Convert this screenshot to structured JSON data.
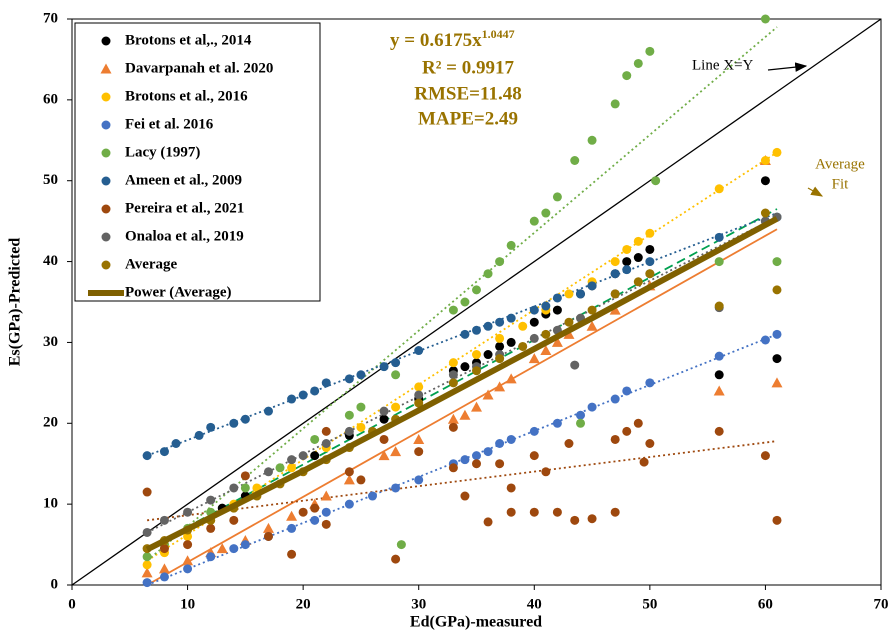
{
  "chart_data": {
    "type": "scatter",
    "x_label": "Ed(GPa)-measured",
    "y_label": "Es(GPa)-Predicted",
    "xlim": [
      0,
      70
    ],
    "ylim": [
      0,
      70
    ],
    "xticks": [
      0,
      10,
      20,
      30,
      40,
      50,
      60,
      70
    ],
    "yticks": [
      0,
      10,
      20,
      30,
      40,
      50,
      60,
      70
    ],
    "annotations": {
      "equation": {
        "base": "y = 0.6175x",
        "exponent": "1.0447"
      },
      "r2": "R² = 0.9917",
      "rmse": "RMSE=11.48",
      "mape": "MAPE=2.49",
      "identity": "Line X=Y",
      "fit_1": "Average",
      "fit_2": "Fit"
    },
    "series": [
      {
        "name": "Brotons et al,., 2014",
        "color": "#000000",
        "marker": "circle",
        "x": [
          13,
          15,
          21,
          24,
          27,
          30,
          33,
          34,
          35,
          36,
          37,
          38,
          40,
          41,
          42,
          44,
          45,
          47,
          48,
          49,
          50,
          56,
          60,
          61
        ],
        "values": [
          9.5,
          11,
          16,
          18.5,
          20.5,
          23,
          26.5,
          27,
          27.5,
          28.5,
          29.5,
          30,
          32.5,
          33.5,
          34,
          36,
          37,
          38.5,
          40,
          40.5,
          41.5,
          26,
          50,
          28
        ],
        "trend": {
          "x": [
            6.5,
            61
          ],
          "values": [
            4.5,
            46.5
          ],
          "color": "#00a050",
          "style": "dashed"
        }
      },
      {
        "name": "Davarpanah  et al. 2020",
        "color": "#ed7d31",
        "marker": "triangle",
        "x": [
          6.5,
          8,
          10,
          12,
          13,
          15,
          17,
          19,
          21,
          22,
          24,
          27,
          28,
          30,
          33,
          34,
          35,
          36,
          37,
          38,
          40,
          41,
          42,
          43,
          45,
          47,
          50,
          56,
          60,
          61
        ],
        "values": [
          1.5,
          2,
          3,
          4,
          4.5,
          5.5,
          7,
          8.5,
          10,
          11,
          13,
          16,
          16.5,
          18,
          20.5,
          21,
          22,
          23.5,
          24.5,
          25.5,
          28,
          29,
          30,
          31,
          32,
          34,
          37,
          24,
          52.5,
          25
        ],
        "trend": {
          "x": [
            6.5,
            61
          ],
          "values": [
            0,
            44
          ],
          "color": "#ed7d31",
          "style": "solid"
        }
      },
      {
        "name": "Brotons et al., 2016",
        "color": "#ffc000",
        "marker": "circle",
        "x": [
          6.5,
          8,
          10,
          12,
          14,
          16,
          19,
          22,
          25,
          28,
          30,
          33,
          35,
          37,
          39,
          41,
          43,
          45,
          47,
          48,
          49,
          50,
          56,
          60,
          61
        ],
        "values": [
          2.5,
          4,
          6,
          8,
          10,
          12,
          14.5,
          17,
          19.5,
          22,
          24.5,
          27.5,
          28.5,
          30.5,
          32,
          34,
          36,
          37.5,
          40,
          41.5,
          42.5,
          43.5,
          49,
          52.5,
          53.5
        ],
        "trend": {
          "x": [
            6.5,
            61
          ],
          "values": [
            3,
            53.5
          ],
          "color": "#ffc000",
          "style": "dotted"
        }
      },
      {
        "name": "Fei et al. 2016",
        "color": "#4472c4",
        "marker": "circle",
        "x": [
          6.5,
          8,
          10,
          12,
          14,
          15,
          17,
          19,
          21,
          22,
          24,
          26,
          28,
          30,
          33,
          34,
          35,
          36,
          37,
          38,
          40,
          42,
          44,
          45,
          47,
          48,
          50,
          56,
          60,
          61
        ],
        "values": [
          0.3,
          1,
          2,
          3.5,
          4.5,
          5,
          6,
          7,
          8,
          9,
          10,
          11,
          12,
          13,
          15,
          15.5,
          16,
          16.5,
          17.5,
          18,
          19,
          20,
          21,
          22,
          23,
          24,
          25,
          28.3,
          30.3,
          31
        ],
        "trend": {
          "x": [
            6.5,
            61
          ],
          "values": [
            0,
            31
          ],
          "color": "#4472c4",
          "style": "dotted"
        }
      },
      {
        "name": "Lacy (1997)",
        "color": "#70ad47",
        "marker": "circle",
        "x": [
          6.5,
          8,
          10,
          12,
          15,
          18,
          21,
          24,
          25,
          28,
          28.5,
          33,
          34,
          35,
          36,
          37,
          38,
          40,
          41,
          42,
          43.5,
          44,
          45,
          47,
          48,
          49,
          50,
          50.5,
          56,
          60,
          61
        ],
        "values": [
          3.5,
          5,
          7,
          9,
          12,
          14.5,
          18,
          21,
          22,
          26,
          5,
          34,
          35,
          36.5,
          38.5,
          40,
          42,
          45,
          46,
          48,
          52.5,
          20,
          55,
          59.5,
          63,
          64.5,
          66,
          50,
          40,
          70,
          40
        ],
        "trend": {
          "x": [
            6.5,
            61
          ],
          "values": [
            3,
            69
          ],
          "color": "#70ad47",
          "style": "dotted"
        }
      },
      {
        "name": "Ameen et al., 2009",
        "color": "#255e91",
        "marker": "circle",
        "x": [
          6.5,
          8,
          9,
          11,
          12,
          14,
          15,
          17,
          19,
          20,
          21,
          22,
          24,
          25,
          27,
          28,
          30,
          34,
          35,
          36,
          37,
          38,
          40,
          41,
          42,
          44,
          45,
          47,
          48,
          50,
          56,
          60,
          61
        ],
        "values": [
          16,
          16.5,
          17.5,
          18.5,
          19.5,
          20,
          20.5,
          21.5,
          23,
          23.5,
          24,
          25,
          25.5,
          26,
          27,
          27.5,
          29,
          31,
          31.5,
          32,
          32.5,
          33,
          34,
          34.5,
          35.5,
          36,
          37,
          38.5,
          39,
          40,
          43,
          45,
          45.5
        ],
        "trend": {
          "x": [
            6.5,
            61
          ],
          "values": [
            16,
            46
          ],
          "color": "#255e91",
          "style": "dotted"
        }
      },
      {
        "name": "Pereira  et al., 2021",
        "color": "#9e480e",
        "marker": "circle",
        "x": [
          6.5,
          8,
          10,
          12,
          14,
          15,
          17,
          19,
          20,
          21,
          22,
          22,
          24,
          25,
          27,
          28,
          30,
          33,
          33,
          34,
          35,
          36,
          37,
          38,
          38,
          40,
          40,
          41,
          42,
          43,
          43.5,
          45,
          47,
          47,
          48,
          49,
          49.5,
          50,
          56,
          60,
          61
        ],
        "values": [
          11.5,
          4.5,
          5,
          7,
          8,
          13.5,
          6,
          3.8,
          9,
          9.5,
          7.5,
          19,
          14,
          13,
          18,
          3.2,
          16.5,
          19.5,
          14.5,
          11,
          15,
          7.8,
          15,
          12,
          9,
          9,
          16,
          14,
          9,
          17.5,
          8,
          8.2,
          9,
          18,
          19,
          20,
          15.2,
          17.5,
          19,
          16,
          8
        ],
        "trend": {
          "x": [
            6.5,
            61
          ],
          "values": [
            8,
            17.8
          ],
          "color": "#9e480e",
          "style": "dotted"
        }
      },
      {
        "name": "Onaloa et al., 2019",
        "color": "#636363",
        "marker": "circle",
        "x": [
          6.5,
          8,
          10,
          12,
          14,
          17,
          19,
          20,
          22,
          24,
          27,
          30,
          33,
          35,
          37,
          40,
          42,
          43.5,
          44,
          47,
          50,
          56,
          60,
          61
        ],
        "values": [
          6.5,
          8,
          9,
          10.5,
          12,
          14,
          15.5,
          16,
          17.5,
          19,
          21.5,
          23.5,
          26,
          27,
          28.5,
          30.5,
          31.5,
          27.2,
          33,
          36,
          38.5,
          34.3,
          45,
          45.5
        ],
        "trend": {
          "x": [
            6.5,
            61
          ],
          "values": [
            6.5,
            45.5
          ],
          "color": "#636363",
          "style": "dotted"
        }
      },
      {
        "name": "Average",
        "color": "#997300",
        "marker": "circle",
        "x": [
          6.5,
          8,
          10,
          12,
          14,
          16,
          18,
          20,
          22,
          24,
          26,
          28,
          30,
          33,
          35,
          37,
          39,
          41,
          43,
          45,
          47,
          49,
          50,
          56,
          60,
          61
        ],
        "values": [
          4.5,
          5.5,
          6.8,
          8,
          9.5,
          11,
          12.5,
          14,
          15.5,
          17,
          19,
          20.5,
          22.5,
          25,
          26.5,
          28,
          29.5,
          31,
          32.5,
          34,
          36,
          37.5,
          38.5,
          34.5,
          46,
          36.5
        ]
      },
      {
        "name": "Power (Average)",
        "color": "#7f6000",
        "marker": "line",
        "x": [
          6.5,
          20,
          30,
          45,
          61
        ],
        "values": [
          4.4,
          14.1,
          21.6,
          33.0,
          45.3
        ]
      }
    ]
  }
}
